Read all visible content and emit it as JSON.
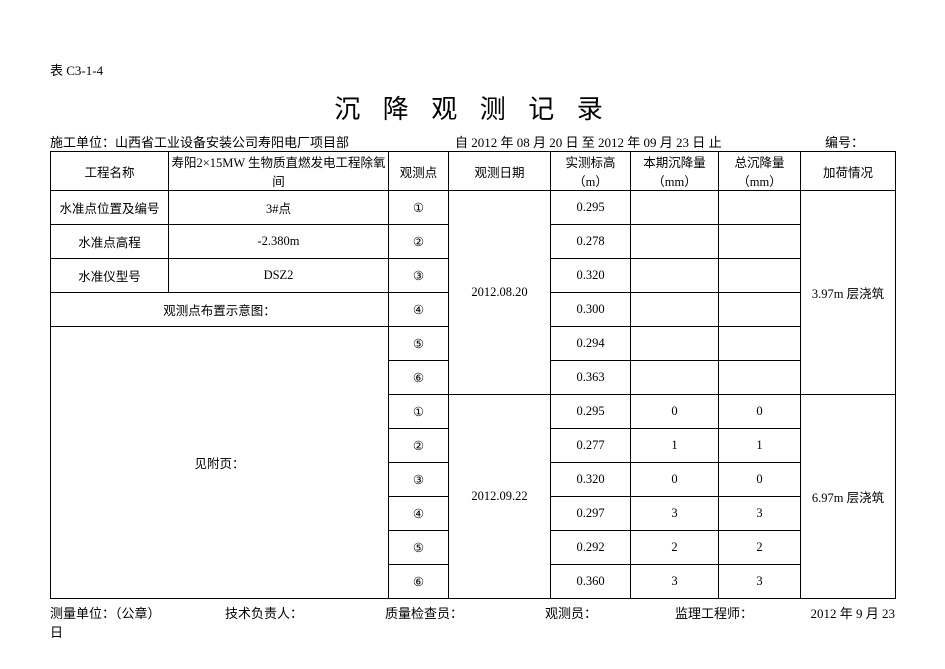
{
  "form_code": "表 C3-1-4",
  "title": "沉 降 观 测 记 录",
  "header": {
    "unit_label": "施工单位：",
    "unit_value": "山西省工业设备安装公司寿阳电厂项目部",
    "date_label_a": "自",
    "date_start": "2012 年 08 月 20 日",
    "date_label_b": "至",
    "date_end": "2012 年 09 月 23 日",
    "date_label_c": "止",
    "code_label": "编号："
  },
  "headers": {
    "project_name": "工程名称",
    "project_value": "寿阳2×15MW 生物质直燃发电工程除氧间",
    "obs_point": "观测点",
    "obs_date": "观测日期",
    "elevation": "实测标高（m）",
    "period_settle": "本期沉降量（mm）",
    "total_settle": "总沉降量（mm）",
    "load": "加荷情况"
  },
  "left_rows": {
    "bench_pos_label": "水准点位置及编号",
    "bench_pos_value": "3#点",
    "bench_elev_label": "水准点高程",
    "bench_elev_value": "-2.380m",
    "level_model_label": "水准仪型号",
    "level_model_value": "DSZ2",
    "layout_label": "观测点布置示意图：",
    "attach_label": "见附页："
  },
  "points": {
    "p1": "①",
    "p2": "②",
    "p3": "③",
    "p4": "④",
    "p5": "⑤",
    "p6": "⑥"
  },
  "group1": {
    "date": "2012.08.20",
    "load": "3.97m 层浇筑",
    "r1": {
      "elev": "0.295",
      "period": "",
      "total": ""
    },
    "r2": {
      "elev": "0.278",
      "period": "",
      "total": ""
    },
    "r3": {
      "elev": "0.320",
      "period": "",
      "total": ""
    },
    "r4": {
      "elev": "0.300",
      "period": "",
      "total": ""
    },
    "r5": {
      "elev": "0.294",
      "period": "",
      "total": ""
    },
    "r6": {
      "elev": "0.363",
      "period": "",
      "total": ""
    }
  },
  "group2": {
    "date": "2012.09.22",
    "load": "6.97m 层浇筑",
    "r1": {
      "elev": "0.295",
      "period": "0",
      "total": "0"
    },
    "r2": {
      "elev": "0.277",
      "period": "1",
      "total": "1"
    },
    "r3": {
      "elev": "0.320",
      "period": "0",
      "total": "0"
    },
    "r4": {
      "elev": "0.297",
      "period": "3",
      "total": "3"
    },
    "r5": {
      "elev": "0.292",
      "period": "2",
      "total": "2"
    },
    "r6": {
      "elev": "0.360",
      "period": "3",
      "total": "3"
    }
  },
  "footer": {
    "meas_unit": "测量单位：（公章）",
    "tech_lead": "技术负责人：",
    "quality": "质量检查员：",
    "observer": "观测员：",
    "supervisor": "监理工程师：",
    "date": "2012 年 9 月 23",
    "day": "日"
  }
}
